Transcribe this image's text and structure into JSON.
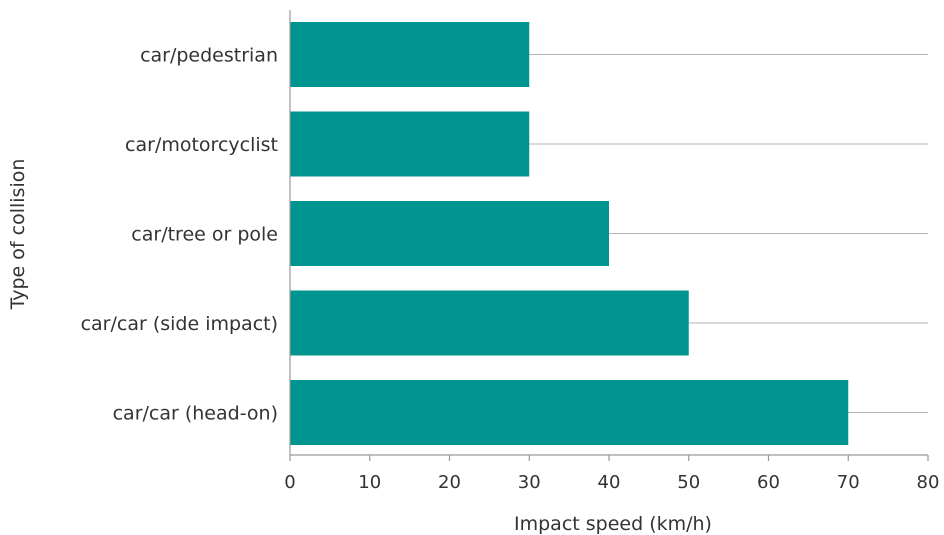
{
  "chart_data": {
    "type": "bar",
    "orientation": "horizontal",
    "categories": [
      "car/pedestrian",
      "car/motorcyclist",
      "car/tree or pole",
      "car/car (side impact)",
      "car/car (head-on)"
    ],
    "values": [
      30,
      30,
      40,
      50,
      70
    ],
    "xlabel": "Impact speed (km/h)",
    "ylabel": "Type of collision",
    "xlim": [
      0,
      80
    ],
    "xticks": [
      0,
      10,
      20,
      30,
      40,
      50,
      60,
      70,
      80
    ],
    "grid": "horizontal lines at each category",
    "bar_color": "#009490",
    "grid_color": "#b3b3b3",
    "axis_color": "#9a9a9a"
  }
}
